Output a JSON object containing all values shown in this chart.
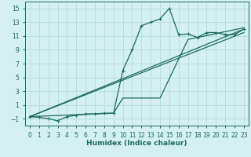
{
  "xlabel": "Humidex (Indice chaleur)",
  "background_color": "#d4f0f0",
  "grid_color": "#b8dede",
  "line_color": "#1a6b5a",
  "xlim": [
    -0.5,
    23.5
  ],
  "ylim": [
    -2.0,
    16.0
  ],
  "xticks": [
    0,
    1,
    2,
    3,
    4,
    5,
    6,
    7,
    8,
    9,
    10,
    11,
    12,
    13,
    14,
    15,
    16,
    17,
    18,
    19,
    20,
    21,
    22,
    23
  ],
  "yticks": [
    -1,
    1,
    3,
    5,
    7,
    9,
    11,
    13,
    15
  ],
  "line1_x": [
    0,
    1,
    2,
    3,
    4,
    5,
    6,
    7,
    8,
    9,
    10,
    11,
    12,
    13,
    14,
    15,
    16,
    17,
    18,
    19,
    20,
    21,
    22,
    23
  ],
  "line1_y": [
    -0.7,
    -0.8,
    -1.0,
    -1.3,
    -0.7,
    -0.5,
    -0.3,
    -0.3,
    -0.2,
    -0.2,
    6.0,
    9.0,
    12.5,
    13.0,
    13.5,
    15.0,
    11.2,
    11.3,
    10.8,
    11.5,
    11.5,
    11.2,
    11.2,
    12.0
  ],
  "line2_x": [
    0,
    23
  ],
  "line2_y": [
    -0.7,
    12.0
  ],
  "line3_x": [
    0,
    23
  ],
  "line3_y": [
    -0.7,
    11.5
  ],
  "line4_x": [
    0,
    9,
    10,
    14,
    17,
    23
  ],
  "line4_y": [
    -0.7,
    -0.2,
    2.0,
    2.0,
    10.5,
    12.2
  ],
  "tick_fontsize": 5.5,
  "xlabel_fontsize": 6.5,
  "lw": 0.9,
  "marker_size": 2.5
}
